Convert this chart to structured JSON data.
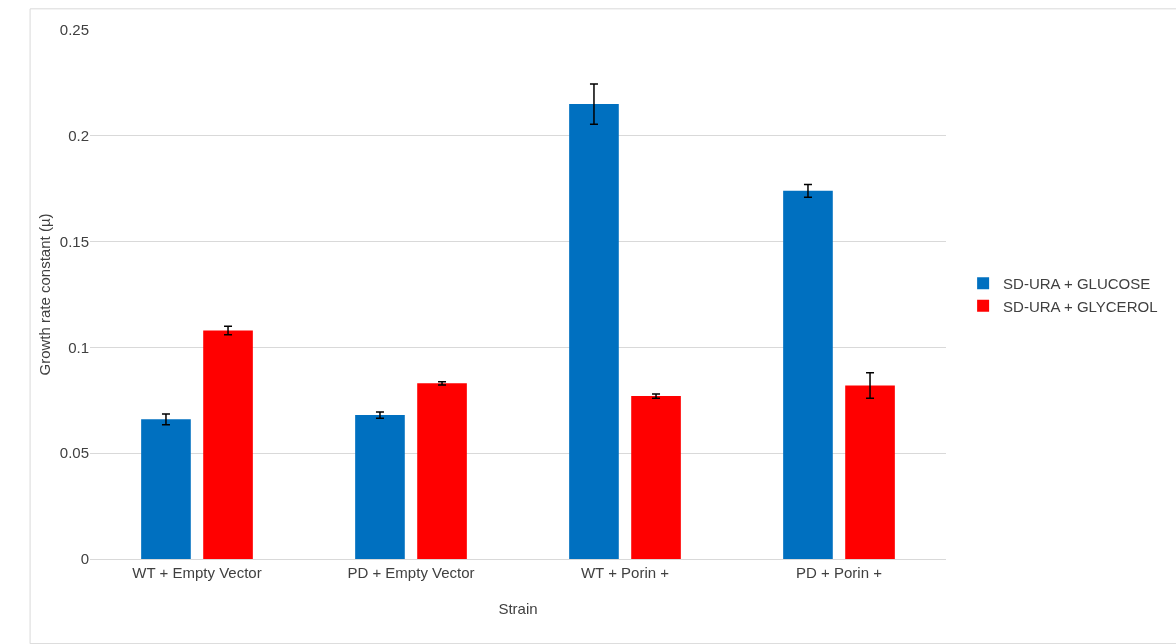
{
  "chart_data": {
    "type": "bar",
    "xlabel": "Strain",
    "ylabel": "Growth rate constant (µ)",
    "categories": [
      "WT + Empty Vector",
      "PD + Empty Vector",
      "WT + Porin +",
      "PD + Porin +"
    ],
    "series": [
      {
        "name": "SD-URA + GLUCOSE",
        "color": "#0070c0",
        "values": [
          0.066,
          0.068,
          0.215,
          0.174
        ],
        "errors": [
          0.0025,
          0.0015,
          0.0095,
          0.003
        ]
      },
      {
        "name": "SD-URA + GLYCEROL",
        "color": "#ff0000",
        "values": [
          0.108,
          0.083,
          0.077,
          0.082
        ],
        "errors": [
          0.002,
          0.0008,
          0.001,
          0.006
        ]
      }
    ],
    "ylim": [
      0,
      0.25
    ],
    "yticks": [
      0,
      0.05,
      0.1,
      0.15,
      0.2,
      0.25
    ],
    "grid": "y",
    "legend": "right"
  }
}
